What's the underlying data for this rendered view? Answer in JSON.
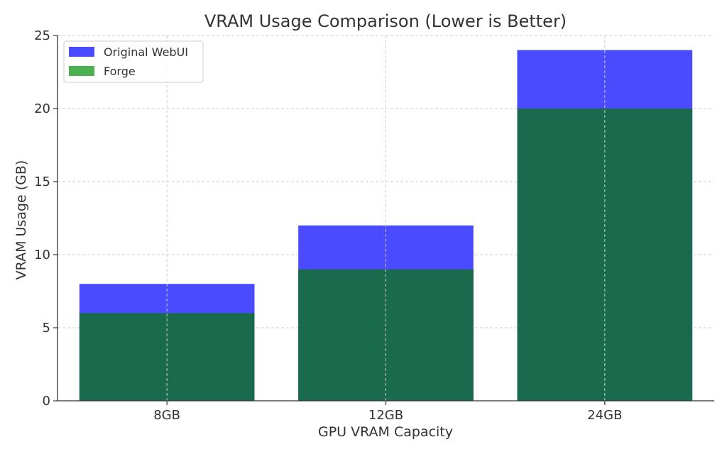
{
  "chart_data": {
    "type": "bar",
    "title": "VRAM Usage Comparison (Lower is Better)",
    "xlabel": "GPU VRAM Capacity",
    "ylabel": "VRAM Usage (GB)",
    "categories": [
      "8GB",
      "12GB",
      "24GB"
    ],
    "series": [
      {
        "name": "Original WebUI",
        "values": [
          8,
          12,
          24
        ],
        "color": "#4a4aff"
      },
      {
        "name": "Forge",
        "values": [
          6,
          9,
          20
        ],
        "color": "#4caf50",
        "overlap_color": "#1a6b4d"
      }
    ],
    "ylim": [
      0,
      25
    ],
    "yticks": [
      0,
      5,
      10,
      15,
      20,
      25
    ],
    "grid": true,
    "legend_position": "top-left"
  }
}
